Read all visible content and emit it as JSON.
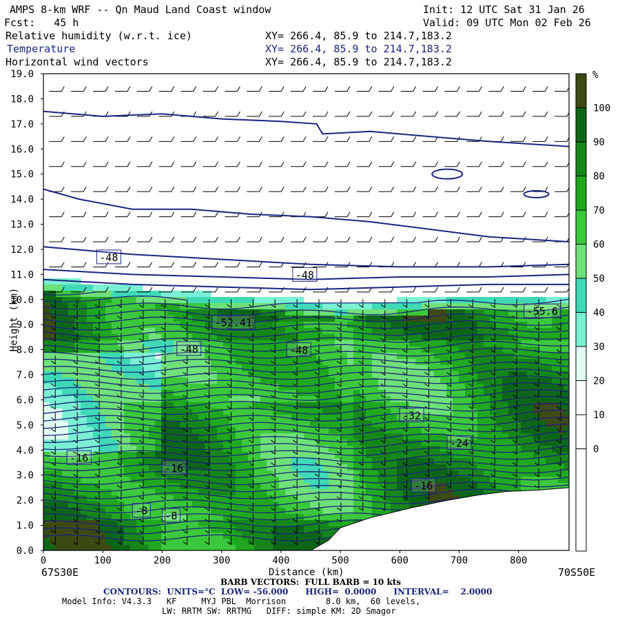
{
  "header": {
    "title": "AMPS 8-km WRF -- Qn Maud Land Coast window",
    "init": "Init: 12 UTC Sat 31 Jan 26",
    "fcst": "Fcst:   45 h",
    "valid": "Valid: 09 UTC Mon 02 Feb 26",
    "field1": "Relative humidity (w.r.t. ice)",
    "field1_xy": "XY= 266.4, 85.9 to 214.7,183.2",
    "field2": "Temperature",
    "field2_xy": "XY= 266.4, 85.9 to 214.7,183.2",
    "field3": "Horizontal wind vectors",
    "field3_xy": "XY= 266.4, 85.9 to 214.7,183.2"
  },
  "footer": {
    "left_endpoint": "67S30E",
    "right_endpoint": "70S50E",
    "barb": "BARB VECTORS:  FULL BARB = 10 kts",
    "contours": "CONTOURS:  UNITS=°C  LOW= -56.000      HIGH=  0.0000      INTERVAL=    2.0000",
    "model1": "Model Info: V4.3.3   KF     MYJ PBL  Morrison        8.0 km,  60 levels,",
    "model2": "LW: RRTM SW: RRTMG   DIFF: simple KM: 2D Smagor"
  },
  "colors": {
    "contour": "#1a237e",
    "rh_bands": [
      "#ffffff",
      "#ffffff",
      "#ffffff",
      "#ffffff",
      "#ffffff",
      "#e0fff4",
      "#7af0d4",
      "#3fd9b8",
      "#6fe07a",
      "#3cc83c",
      "#1fa81f",
      "#16861a",
      "#0d6618",
      "#3c4a12"
    ]
  },
  "chart_data": {
    "type": "heatmap",
    "title": "Relative humidity (w.r.t. ice), Temperature, Horizontal wind vectors",
    "xlabel": "Distance (km)",
    "ylabel": "Height (km)",
    "xlim": [
      0,
      885
    ],
    "ylim": [
      0,
      19
    ],
    "x_ticks": [
      "0",
      "100",
      "200",
      "300",
      "400",
      "500",
      "600",
      "700",
      "800"
    ],
    "y_ticks": [
      "0.0",
      "1.0",
      "2.0",
      "3.0",
      "4.0",
      "5.0",
      "6.0",
      "7.0",
      "8.0",
      "9.0",
      "10.0",
      "11.0",
      "12.0",
      "13.0",
      "14.0",
      "15.0",
      "16.0",
      "17.0",
      "18.0",
      "19.0"
    ],
    "colorbar": {
      "unit": "%",
      "labels": [
        "0",
        "10",
        "20",
        "30",
        "40",
        "50",
        "60",
        "70",
        "80",
        "90",
        "100"
      ]
    },
    "terrain_height_km": [
      [
        0,
        0
      ],
      [
        450,
        0
      ],
      [
        480,
        0.4
      ],
      [
        500,
        0.9
      ],
      [
        550,
        1.3
      ],
      [
        620,
        1.7
      ],
      [
        680,
        2.0
      ],
      [
        730,
        2.2
      ],
      [
        780,
        2.35
      ],
      [
        830,
        2.4
      ],
      [
        885,
        2.5
      ]
    ],
    "moist_top_km": [
      [
        0,
        10.3
      ],
      [
        100,
        10.0
      ],
      [
        200,
        9.8
      ],
      [
        300,
        9.6
      ],
      [
        400,
        9.5
      ],
      [
        500,
        9.2
      ],
      [
        600,
        9.4
      ],
      [
        700,
        9.6
      ],
      [
        800,
        9.6
      ],
      [
        885,
        9.5
      ]
    ],
    "temperature_contour_labels": [
      {
        "x": 110,
        "y": 11.7,
        "text": "-48"
      },
      {
        "x": 440,
        "y": 11.0,
        "text": "-48"
      },
      {
        "x": 245,
        "y": 8.05,
        "text": "-48"
      },
      {
        "x": 430,
        "y": 8.0,
        "text": "-48"
      },
      {
        "x": 320,
        "y": 9.1,
        "text": "-52.41"
      },
      {
        "x": 840,
        "y": 9.55,
        "text": "-55.6"
      },
      {
        "x": 620,
        "y": 5.4,
        "text": "-32"
      },
      {
        "x": 700,
        "y": 4.3,
        "text": "-24"
      },
      {
        "x": 60,
        "y": 3.7,
        "text": "-16"
      },
      {
        "x": 220,
        "y": 3.3,
        "text": "-16"
      },
      {
        "x": 640,
        "y": 2.6,
        "text": "-16"
      },
      {
        "x": 165,
        "y": 1.6,
        "text": "-8"
      },
      {
        "x": 215,
        "y": 1.4,
        "text": "-8"
      }
    ]
  }
}
